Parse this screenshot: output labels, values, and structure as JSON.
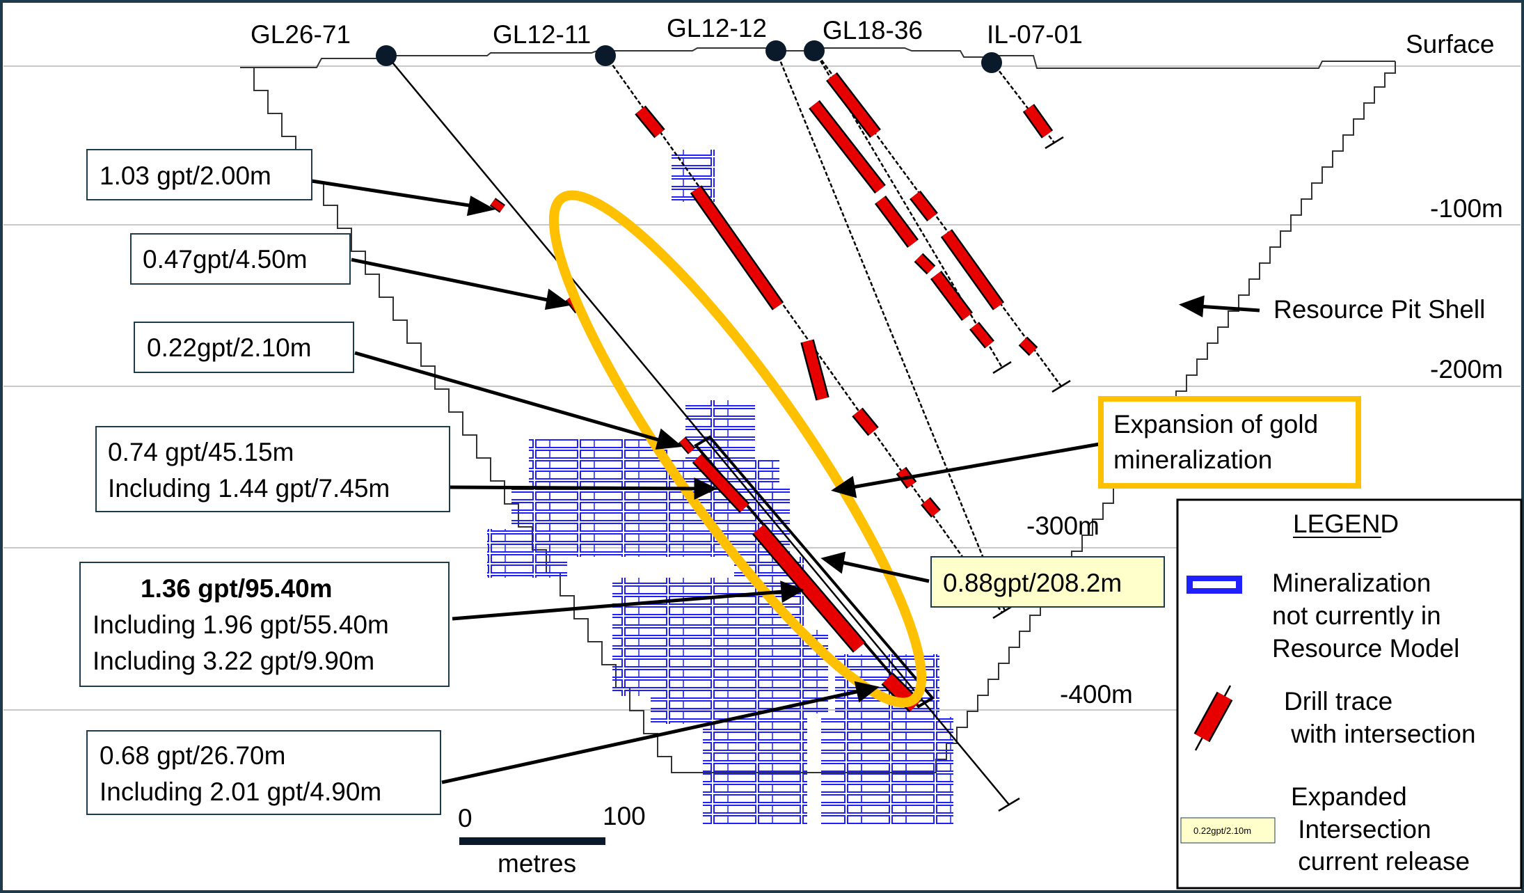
{
  "section_title": "",
  "surface_label": "Surface",
  "drillholes": [
    {
      "id": "GL26-71"
    },
    {
      "id": "GL12-11"
    },
    {
      "id": "GL12-12"
    },
    {
      "id": "GL18-36"
    },
    {
      "id": "IL-07-01"
    }
  ],
  "depth_labels": [
    "-100m",
    "-200m",
    "-300m",
    "-400m"
  ],
  "pit_shell_label": "Resource Pit Shell",
  "callouts": [
    {
      "lines": [
        "1.03 gpt/2.00m"
      ]
    },
    {
      "lines": [
        "0.47gpt/4.50m"
      ]
    },
    {
      "lines": [
        "0.22gpt/2.10m"
      ]
    },
    {
      "lines": [
        "0.74 gpt/45.15m",
        "Including 1.44 gpt/7.45m"
      ]
    },
    {
      "lines": [
        "1.36 gpt/95.40m",
        "Including 1.96 gpt/55.40m",
        "Including 3.22 gpt/9.90m"
      ]
    },
    {
      "lines": [
        "0.68 gpt/26.70m",
        "Including 2.01 gpt/4.90m"
      ]
    }
  ],
  "highlight": {
    "text": "0.88gpt/208.2m",
    "color": "#ffffcc"
  },
  "expansion": {
    "lines": [
      "Expansion of gold",
      "mineralization"
    ],
    "color": "#ffc000"
  },
  "scale": {
    "start": "0",
    "end": "100",
    "unit": "metres"
  },
  "legend": {
    "title": "LEGEND",
    "mineralization": [
      "Mineralization",
      "not currently in",
      "Resource Model"
    ],
    "drill_trace": [
      "Drill trace",
      " with intersection"
    ],
    "expanded": [
      "Expanded",
      " Intersection",
      " current release"
    ],
    "expanded_sample": "0.22gpt/2.10m"
  },
  "colors": {
    "mineralization": "#2020ff",
    "intersection": "#e60000",
    "ellipse": "#ffc000",
    "frame": "#1d3b4a"
  }
}
